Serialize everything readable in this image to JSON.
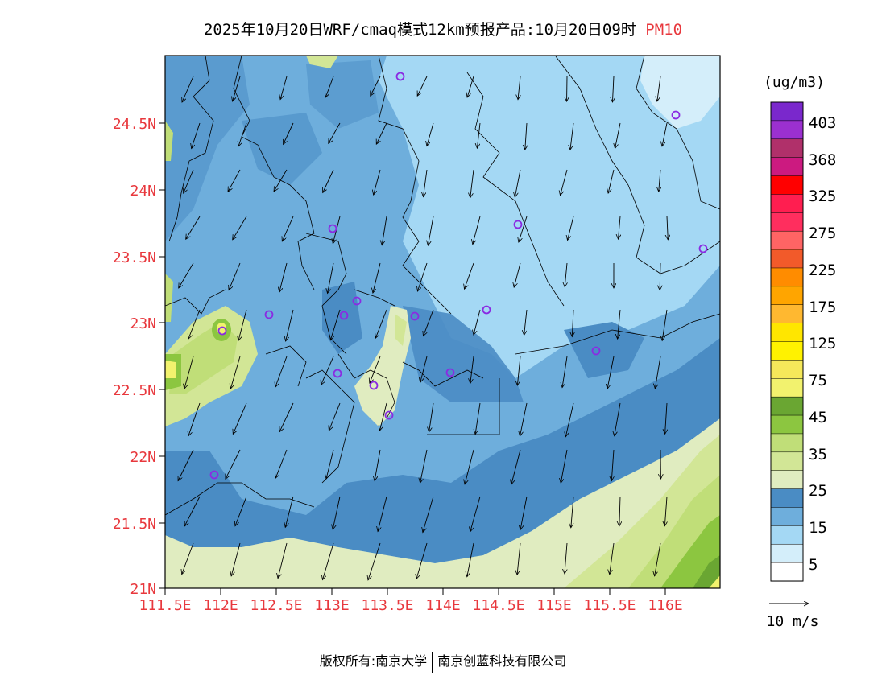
{
  "header": {
    "title_main": "2025年10月20日WRF/cmaq模式12km预报产品:10月20日09时",
    "title_species": "PM10"
  },
  "map": {
    "lat_labels": [
      "24.5N",
      "24N",
      "23.5N",
      "23N",
      "22.5N",
      "22N",
      "21.5N",
      "21N"
    ],
    "lon_labels": [
      "111.5E",
      "112E",
      "112.5E",
      "113E",
      "113.5E",
      "114E",
      "114.5E",
      "115E",
      "115.5E",
      "116E"
    ]
  },
  "legend": {
    "unit": "(ug/m3)",
    "labels": [
      "403",
      "368",
      "325",
      "275",
      "225",
      "175",
      "125",
      "75",
      "45",
      "35",
      "25",
      "15",
      "5"
    ],
    "colors": [
      "#7a28cc",
      "#9b30d0",
      "#b0306a",
      "#cc1a80",
      "#ff0000",
      "#ff1e50",
      "#ff2e5e",
      "#ff6464",
      "#f25a2a",
      "#ff8c00",
      "#ffa500",
      "#ffb830",
      "#ffe600",
      "#fff200",
      "#f5e85a",
      "#f2f26e",
      "#6aa632",
      "#8cc640",
      "#c0de78",
      "#d2e696",
      "#e0ecc0",
      "#4a8cc4",
      "#6eaedc",
      "#a4d8f4",
      "#d4eefa",
      "#ffffff"
    ]
  },
  "wind_legend": {
    "label": "10 m/s"
  },
  "footer": {
    "left": "版权所有:南京大学",
    "right": "南京创蓝科技有限公司"
  },
  "colors": {
    "axis_label": "#e8383d",
    "sea": "#e0ecc0",
    "land_base": "#6eaedc"
  }
}
